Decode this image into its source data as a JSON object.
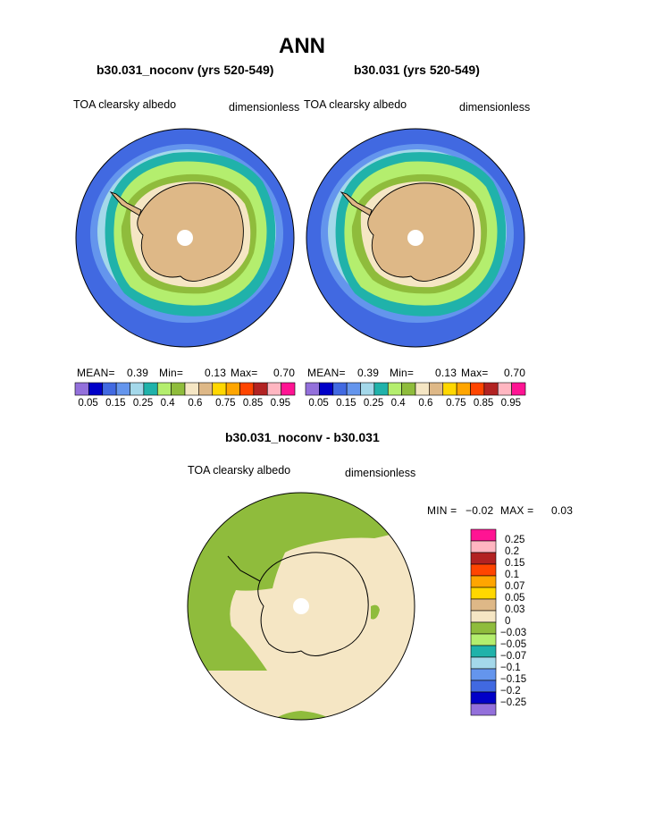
{
  "page": {
    "title": "ANN",
    "diff_title": "b30.031_noconv - b30.031"
  },
  "panels": [
    {
      "case_title": "b30.031_noconv (yrs 520-549)",
      "field_label": "TOA clearsky albedo",
      "units_label": "dimensionless",
      "stats": {
        "mean_label": "MEAN=",
        "mean": "0.39",
        "min_label": "Min=",
        "min": "0.13",
        "max_label": "Max=",
        "max": "0.70"
      }
    },
    {
      "case_title": "b30.031 (yrs 520-549)",
      "field_label": "TOA clearsky albedo",
      "units_label": "dimensionless",
      "stats": {
        "mean_label": "MEAN=",
        "mean": "0.39",
        "min_label": "Min=",
        "min": "0.13",
        "max_label": "Max=",
        "max": "0.70"
      }
    }
  ],
  "abs_colorbar": {
    "colors": [
      "#9370db",
      "#0000c8",
      "#4169e1",
      "#6495ed",
      "#a4d8ea",
      "#20b2aa",
      "#b4ee6e",
      "#8fbc3c",
      "#f5e6c4",
      "#deb887",
      "#ffd700",
      "#ffa500",
      "#ff4500",
      "#b22222",
      "#ffb6c1",
      "#ff1493"
    ],
    "labels": [
      "0.05",
      "0.15",
      "0.25",
      "0.4",
      "0.6",
      "0.75",
      "0.85",
      "0.95"
    ]
  },
  "diff_panel": {
    "field_label": "TOA clearsky albedo",
    "units_label": "dimensionless",
    "minmax": {
      "min_label": "MIN =",
      "min": "−0.02",
      "max_label": "MAX =",
      "max": "0.03"
    },
    "legend": {
      "colors": [
        "#ff1493",
        "#ffb6c1",
        "#b22222",
        "#ff4500",
        "#ffa500",
        "#ffd700",
        "#deb887",
        "#f5e6c4",
        "#8fbc3c",
        "#b4ee6e",
        "#20b2aa",
        "#a4d8ea",
        "#6495ed",
        "#4169e1",
        "#0000c8",
        "#9370db"
      ],
      "labels": [
        "0.25",
        "0.2",
        "0.15",
        "0.1",
        "0.07",
        "0.05",
        "0.03",
        "0",
        "−0.03",
        "−0.05",
        "−0.07",
        "−0.1",
        "−0.15",
        "−0.2",
        "−0.25"
      ]
    }
  },
  "map_colors": {
    "ocean_outer": "#4169e1",
    "ocean_mid": "#6495ed",
    "ring_light": "#a4d8ea",
    "ring_teal": "#20b2aa",
    "ring_lightgreen": "#b4ee6e",
    "ring_green": "#8fbc3c",
    "coast_beige": "#f5e6c4",
    "ice_tan": "#deb887",
    "diff_beige": "#f5e6c4",
    "diff_green": "#8fbc3c"
  }
}
